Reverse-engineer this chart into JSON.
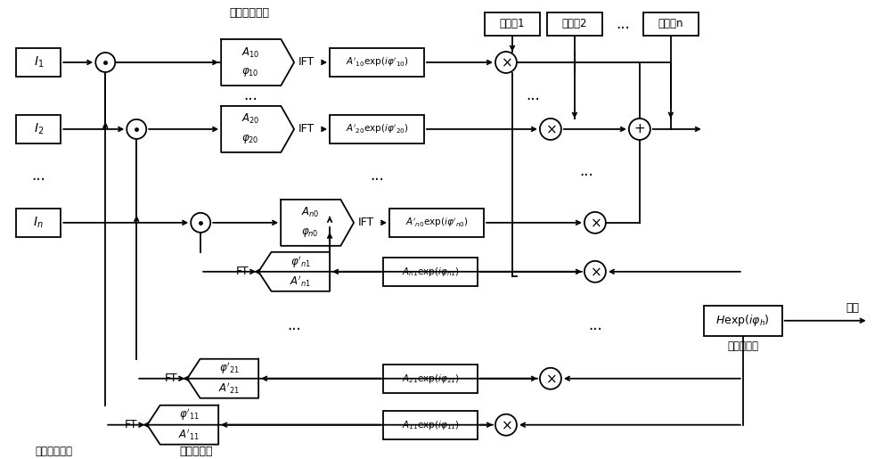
{
  "bg_color": "#ffffff",
  "fig_width": 10.0,
  "fig_height": 5.15,
  "rows": {
    "r1": 445,
    "r2": 370,
    "r3": 265,
    "r4": 210,
    "r5": 155,
    "r6": 90,
    "r7": 38
  },
  "label_待计算复振幅": "待计算复振幅",
  "label_重建复振幅": "重建复振幅",
  "label_目标光学信息": "目标光学信息",
  "label_计算全息图": "计算全息图",
  "label_输出": "输出",
  "reuse_codes": [
    "复用码1",
    "复用码2",
    "复用码n"
  ],
  "dots": "..."
}
